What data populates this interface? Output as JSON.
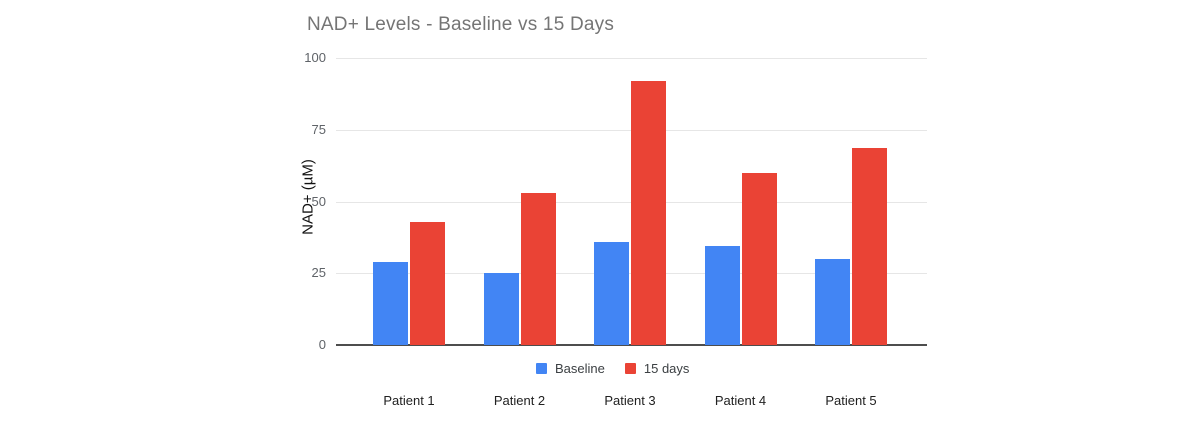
{
  "title": "NAD+ Levels - Baseline vs 15 Days",
  "chart_data": {
    "type": "bar",
    "title": "NAD+ Levels - Baseline vs 15 Days",
    "xlabel": "",
    "ylabel": "NAD+ (µM)",
    "categories": [
      "Patient 1",
      "Patient 2",
      "Patient 3",
      "Patient 4",
      "Patient 5"
    ],
    "series": [
      {
        "name": "Baseline",
        "color": "#4285f4",
        "values": [
          29,
          25,
          36,
          34.5,
          30
        ]
      },
      {
        "name": "15 days",
        "color": "#ea4335",
        "values": [
          43,
          53,
          92,
          60,
          68.5
        ]
      }
    ],
    "ylim": [
      0,
      100
    ],
    "yticks": [
      0,
      25,
      50,
      75,
      100
    ],
    "grid": true,
    "legend_position": "bottom-center",
    "colors": {
      "background": "#ffffff",
      "title_text": "#757575",
      "tick_text": "#5f6368",
      "category_text": "#212121",
      "legend_text": "#3c4043",
      "gridline": "#e6e6e6",
      "axis_line": "#4d4d4d"
    }
  }
}
